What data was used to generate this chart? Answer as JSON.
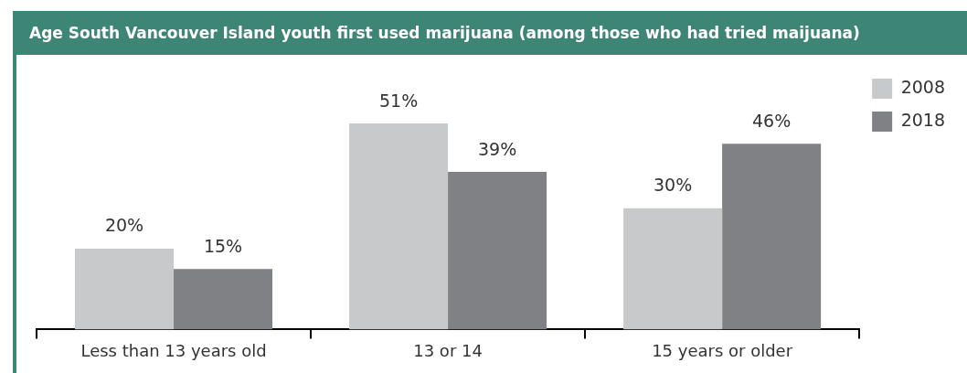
{
  "chart_data": {
    "type": "bar",
    "title": "Age South Vancouver Island youth first used marijuana (among those who had tried maijuana)",
    "categories": [
      "Less than 13 years old",
      "13 or 14",
      "15 years or older"
    ],
    "series": [
      {
        "name": "2008",
        "color": "#c8c9cb",
        "values": [
          20,
          51,
          30
        ],
        "value_labels": [
          "20%",
          "51%",
          "30%"
        ]
      },
      {
        "name": "2018",
        "color": "#808184",
        "values": [
          15,
          39,
          46
        ],
        "value_labels": [
          "15%",
          "39%",
          "46%"
        ]
      }
    ],
    "legend": "top right",
    "grid": false
  }
}
